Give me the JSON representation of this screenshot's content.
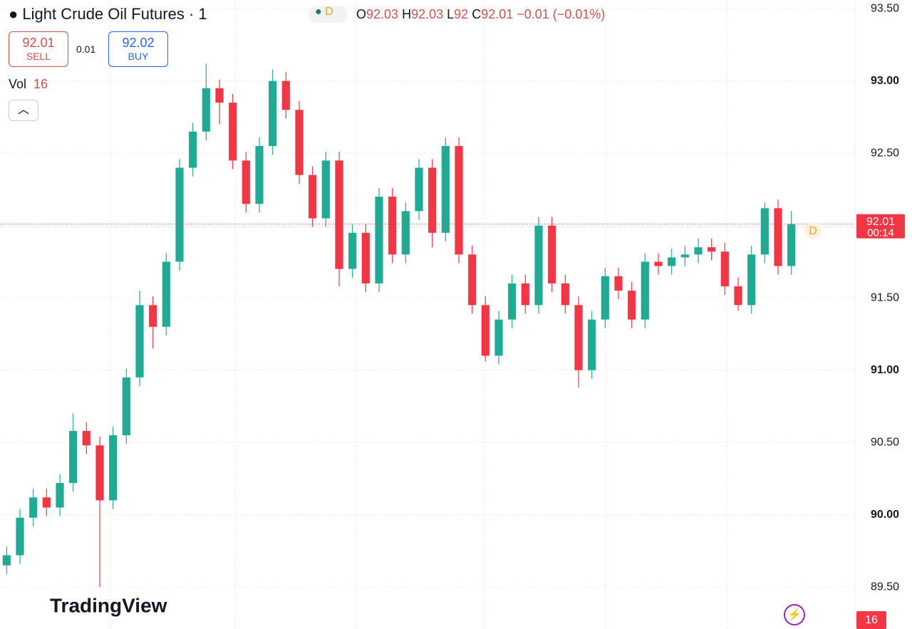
{
  "chart_data": {
    "type": "candlestick",
    "title": "Light Crude Oil Futures · 1",
    "interval_badge": "D",
    "ohlc": {
      "open_label": "O",
      "open": 92.03,
      "high_label": "H",
      "high": 92.03,
      "low_label": "L",
      "low": 92.0,
      "close_label": "C",
      "close": 92.01,
      "change": "−0.01 (−0.01%)"
    },
    "sell": {
      "price": 92.01,
      "label": "SELL"
    },
    "spread": 0.01,
    "buy": {
      "price": 92.02,
      "label": "BUY"
    },
    "volume_label": "Vol",
    "volume": 16,
    "last_price": 92.01,
    "countdown": "00:14",
    "last_badge": "D",
    "brand": "TradingView",
    "up_color": "#22ab94",
    "down_color": "#f23645",
    "open": [
      89.65,
      89.72,
      89.98,
      90.12,
      90.05,
      90.22,
      90.58,
      90.48,
      90.1,
      90.55,
      90.95,
      91.45,
      91.3,
      91.75,
      92.4,
      92.65,
      92.95,
      92.85,
      92.45,
      92.15,
      92.55,
      93.0,
      92.8,
      92.35,
      92.05,
      92.45,
      91.7,
      91.95,
      91.6,
      92.2,
      91.8,
      92.1,
      92.4,
      91.95,
      92.55,
      91.8,
      91.45,
      91.1,
      91.35,
      91.6,
      91.45,
      92.0,
      91.6,
      91.45,
      91.0,
      91.35,
      91.65,
      91.55,
      91.35,
      91.75,
      91.72,
      91.78,
      91.8,
      91.85,
      91.82,
      91.58,
      91.45,
      91.8,
      92.12,
      91.72
    ],
    "high": [
      89.78,
      90.04,
      90.18,
      90.18,
      90.28,
      90.7,
      90.64,
      90.54,
      90.61,
      91.01,
      91.55,
      91.51,
      91.81,
      92.46,
      92.71,
      93.12,
      93.01,
      92.91,
      92.51,
      92.61,
      93.08,
      93.06,
      92.86,
      92.41,
      92.51,
      92.51,
      92.01,
      92.01,
      92.26,
      92.26,
      92.16,
      92.46,
      92.46,
      92.61,
      92.61,
      91.86,
      91.51,
      91.41,
      91.66,
      91.66,
      92.06,
      92.06,
      91.66,
      91.51,
      91.41,
      91.71,
      91.71,
      91.61,
      91.81,
      91.81,
      91.84,
      91.86,
      91.91,
      91.91,
      91.88,
      91.64,
      91.86,
      92.16,
      92.18,
      92.1
    ],
    "low": [
      89.59,
      89.66,
      89.92,
      89.99,
      89.99,
      90.16,
      90.42,
      89.5,
      90.04,
      90.49,
      90.89,
      91.15,
      91.24,
      91.69,
      92.34,
      92.59,
      92.7,
      92.39,
      92.09,
      92.09,
      92.49,
      92.74,
      92.29,
      91.99,
      91.99,
      91.58,
      91.64,
      91.54,
      91.54,
      91.74,
      91.74,
      92.04,
      91.85,
      91.89,
      91.74,
      91.39,
      91.06,
      91.04,
      91.29,
      91.39,
      91.39,
      91.54,
      91.39,
      90.88,
      90.94,
      91.29,
      91.49,
      91.29,
      91.29,
      91.66,
      91.66,
      91.72,
      91.74,
      91.76,
      91.52,
      91.41,
      91.39,
      91.74,
      91.66,
      91.66
    ],
    "close": [
      89.72,
      89.98,
      90.12,
      90.05,
      90.22,
      90.58,
      90.48,
      90.1,
      90.55,
      90.95,
      91.45,
      91.3,
      91.75,
      92.4,
      92.65,
      92.95,
      92.85,
      92.45,
      92.15,
      92.55,
      93.0,
      92.8,
      92.35,
      92.05,
      92.45,
      91.7,
      91.95,
      91.6,
      92.2,
      91.8,
      92.1,
      92.4,
      91.95,
      92.55,
      91.8,
      91.45,
      91.1,
      91.35,
      91.6,
      91.45,
      92.0,
      91.6,
      91.45,
      91.0,
      91.35,
      91.65,
      91.55,
      91.35,
      91.75,
      91.72,
      91.78,
      91.8,
      91.85,
      91.82,
      91.58,
      91.45,
      91.8,
      92.12,
      91.72,
      92.01
    ],
    "ylim": [
      89.21,
      93.56
    ],
    "yticks": [
      {
        "value": 89.5,
        "label": "89.50"
      },
      {
        "value": 90.0,
        "label": "90.00"
      },
      {
        "value": 90.5,
        "label": "90.50"
      },
      {
        "value": 91.0,
        "label": "91.00"
      },
      {
        "value": 91.5,
        "label": "91.50"
      },
      {
        "value": 92.5,
        "label": "92.50"
      },
      {
        "value": 93.0,
        "label": "93.00"
      },
      {
        "value": 93.5,
        "label": "93.50"
      }
    ],
    "grid": true
  }
}
